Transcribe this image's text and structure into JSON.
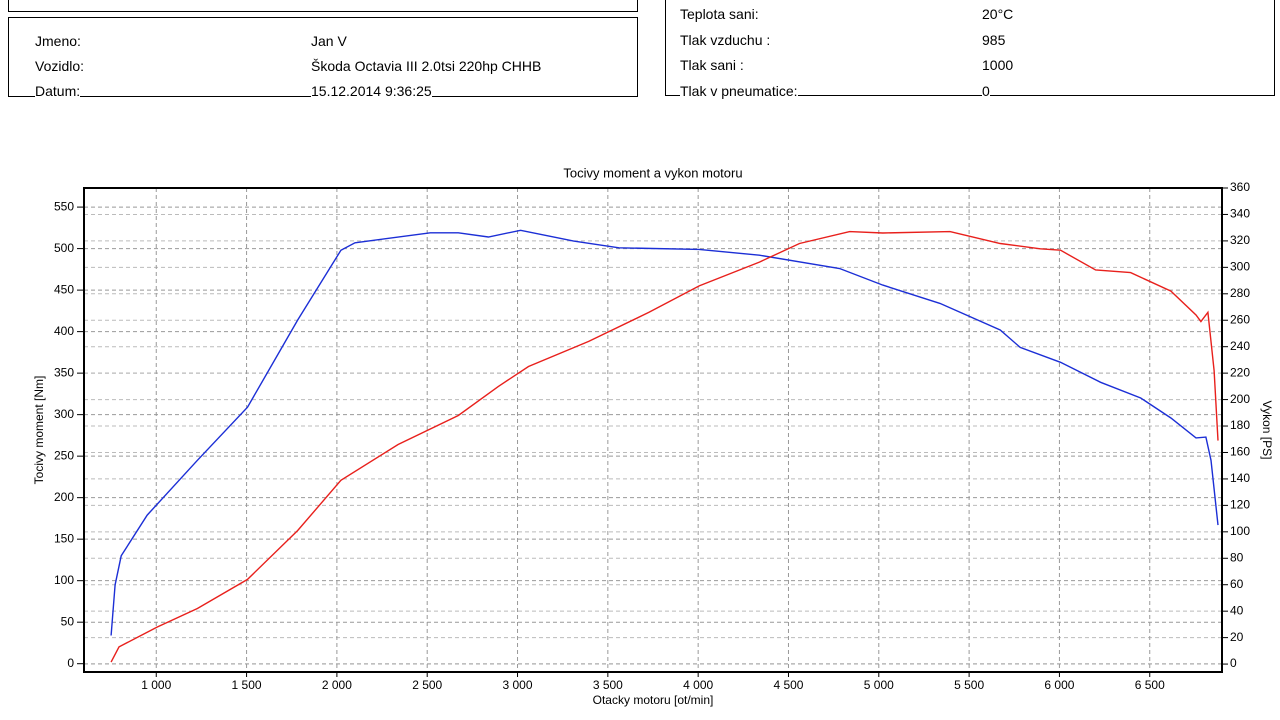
{
  "header": {
    "vehicle": [
      {
        "label": "Jmeno:",
        "value": "Jan V"
      },
      {
        "label": "Vozidlo:",
        "value": "Škoda Octavia III 2.0tsi 220hp CHHB"
      },
      {
        "label": "Datum:",
        "value": "15.12.2014 9:36:25"
      }
    ],
    "conditions": [
      {
        "label": "Teplota sani:",
        "value": "20°C"
      },
      {
        "label": "Tlak vzduchu :",
        "value": "985"
      },
      {
        "label": "Tlak sani :",
        "value": "1000"
      },
      {
        "label": "Tlak v pneumatice:",
        "value": "0"
      }
    ]
  },
  "chart_data": {
    "type": "line",
    "title": "Tocivy moment a vykon motoru",
    "x_label": "Otacky motoru [ot/min]",
    "y_label": "Tocivy moment [Nm]",
    "y2_label": "Vykon [PS]",
    "xlim": [
      600,
      6900
    ],
    "ylim": [
      -10,
      573
    ],
    "y2lim": [
      -6,
      360
    ],
    "xticks": [
      {
        "value": 1000,
        "label": "1 000"
      },
      {
        "value": 1500,
        "label": "1 500"
      },
      {
        "value": 2000,
        "label": "2 000"
      },
      {
        "value": 2500,
        "label": "2 500"
      },
      {
        "value": 3000,
        "label": "3 000"
      },
      {
        "value": 3500,
        "label": "3 500"
      },
      {
        "value": 4000,
        "label": "4 000"
      },
      {
        "value": 4500,
        "label": "4 500"
      },
      {
        "value": 5000,
        "label": "5 000"
      },
      {
        "value": 5500,
        "label": "5 500"
      },
      {
        "value": 6000,
        "label": "6 000"
      },
      {
        "value": 6500,
        "label": "6 500"
      }
    ],
    "yticks": [
      0,
      50,
      100,
      150,
      200,
      250,
      300,
      350,
      400,
      450,
      500,
      550
    ],
    "y2ticks": [
      0,
      20,
      40,
      60,
      80,
      100,
      120,
      140,
      160,
      180,
      200,
      220,
      240,
      260,
      280,
      300,
      320,
      340,
      360
    ],
    "grid": true,
    "series": [
      {
        "name": "Tocivy moment",
        "color": "#1c2fd6",
        "x": [
          750,
          772,
          806,
          950,
          1228,
          1505,
          1783,
          2022,
          2100,
          2517,
          2672,
          2839,
          3017,
          3311,
          3561,
          4006,
          4339,
          4783,
          5022,
          5339,
          5672,
          5783,
          6006,
          6228,
          6450,
          6617,
          6756,
          6811,
          6839,
          6878
        ],
        "values": [
          34,
          95,
          130,
          179,
          245,
          309,
          414,
          498,
          507,
          519,
          519,
          514,
          522,
          509,
          501,
          499,
          492,
          476,
          456,
          434,
          402,
          381,
          363,
          339,
          320,
          296,
          272,
          273,
          245,
          167
        ]
      },
      {
        "name": "Vykon",
        "color": "#e8201c",
        "axis": "y2",
        "x": [
          750,
          794,
          1006,
          1228,
          1505,
          1783,
          2022,
          2339,
          2672,
          2894,
          3061,
          3394,
          3728,
          4006,
          4339,
          4561,
          4839,
          5022,
          5394,
          5672,
          5894,
          6006,
          6200,
          6394,
          6617,
          6756,
          6783,
          6822,
          6856,
          6878
        ],
        "values": [
          1.5,
          13,
          28,
          42,
          64,
          101,
          139,
          166,
          188,
          210,
          225,
          244,
          266,
          286,
          304,
          318,
          327,
          326,
          327,
          318,
          314,
          313,
          298,
          296,
          282,
          264,
          259,
          266,
          222,
          169
        ]
      }
    ]
  }
}
